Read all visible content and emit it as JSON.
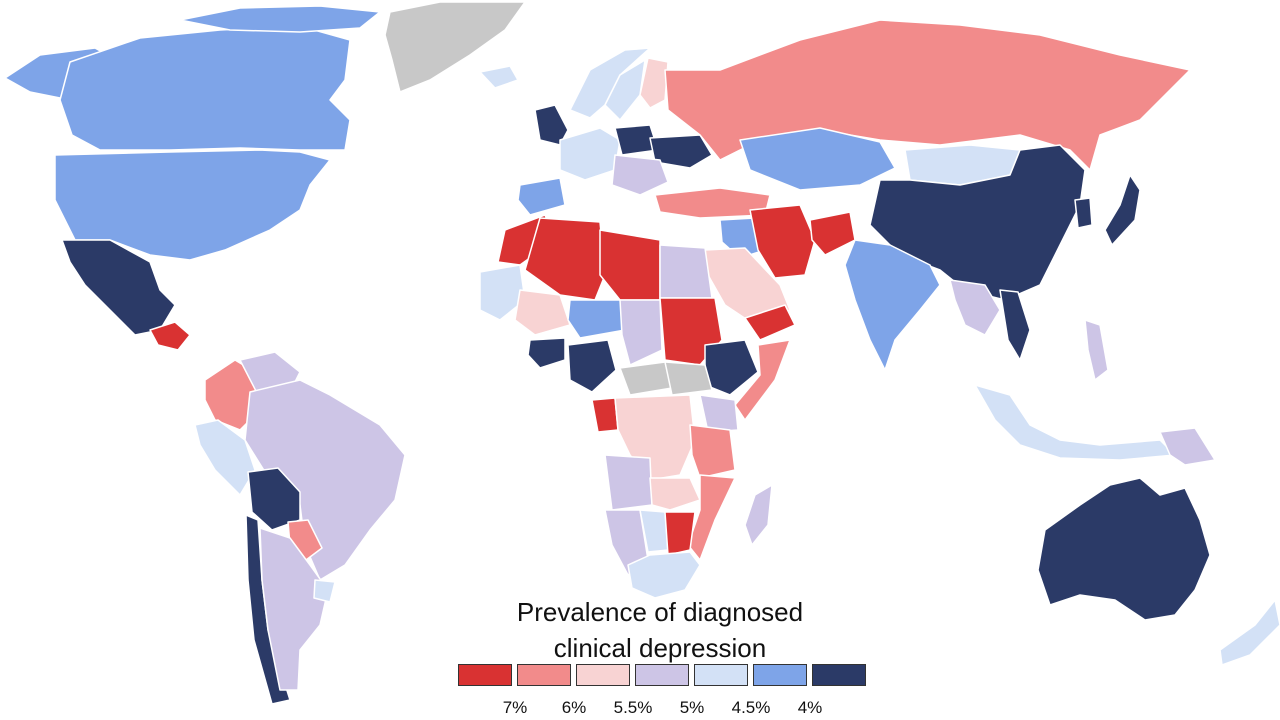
{
  "legend": {
    "title_line1": "Prevalence of diagnosed",
    "title_line2": "clinical depression",
    "bins": [
      {
        "color": "#d93232"
      },
      {
        "color": "#f28b8b"
      },
      {
        "color": "#f8d3d3"
      },
      {
        "color": "#cdc5e6"
      },
      {
        "color": "#d3e1f6"
      },
      {
        "color": "#7ea4e8"
      },
      {
        "color": "#2b3a67"
      }
    ],
    "ticks": [
      "7%",
      "6%",
      "5.5%",
      "5%",
      "4.5%",
      "4%"
    ]
  },
  "colors": {
    "ocean": "#ffffff",
    "no_data": "#c8c8c8",
    "border": "#ffffff"
  },
  "regions": [
    {
      "name": "Canada",
      "level": 5
    },
    {
      "name": "United States",
      "level": 5
    },
    {
      "name": "Alaska",
      "level": 5
    },
    {
      "name": "Greenland",
      "level": "none"
    },
    {
      "name": "Mexico",
      "level": 6
    },
    {
      "name": "Central America",
      "level": 0
    },
    {
      "name": "Colombia",
      "level": 1
    },
    {
      "name": "Venezuela",
      "level": 3
    },
    {
      "name": "Brazil",
      "level": 3
    },
    {
      "name": "Peru",
      "level": 4
    },
    {
      "name": "Bolivia",
      "level": 6
    },
    {
      "name": "Paraguay",
      "level": 1
    },
    {
      "name": "Chile",
      "level": 6
    },
    {
      "name": "Argentina",
      "level": 3
    },
    {
      "name": "Uruguay",
      "level": 4
    },
    {
      "name": "Iceland",
      "level": 4
    },
    {
      "name": "United Kingdom",
      "level": 6
    },
    {
      "name": "Norway",
      "level": 4
    },
    {
      "name": "Sweden",
      "level": 4
    },
    {
      "name": "Finland",
      "level": 2
    },
    {
      "name": "Western Europe",
      "level": 4
    },
    {
      "name": "Spain",
      "level": 5
    },
    {
      "name": "Poland",
      "level": 6
    },
    {
      "name": "Ukraine",
      "level": 6
    },
    {
      "name": "Central Europe",
      "level": 3
    },
    {
      "name": "Russia",
      "level": 1
    },
    {
      "name": "Kazakhstan",
      "level": 5
    },
    {
      "name": "Mongolia",
      "level": 4
    },
    {
      "name": "China",
      "level": 6
    },
    {
      "name": "Japan",
      "level": 6
    },
    {
      "name": "Korea",
      "level": 6
    },
    {
      "name": "Turkey",
      "level": 1
    },
    {
      "name": "Iran",
      "level": 0
    },
    {
      "name": "Afghanistan",
      "level": 0
    },
    {
      "name": "Iraq",
      "level": 5
    },
    {
      "name": "Saudi Arabia",
      "level": 2
    },
    {
      "name": "Yemen",
      "level": 0
    },
    {
      "name": "India",
      "level": 5
    },
    {
      "name": "Southeast Asia",
      "level": 3
    },
    {
      "name": "Vietnam",
      "level": 6
    },
    {
      "name": "Indonesia",
      "level": 4
    },
    {
      "name": "Philippines",
      "level": 3
    },
    {
      "name": "Papua New Guinea",
      "level": 3
    },
    {
      "name": "Australia",
      "level": 6
    },
    {
      "name": "New Zealand",
      "level": 4
    },
    {
      "name": "Morocco",
      "level": 0
    },
    {
      "name": "Algeria",
      "level": 0
    },
    {
      "name": "Libya",
      "level": 0
    },
    {
      "name": "Egypt",
      "level": 3
    },
    {
      "name": "Mauritania",
      "level": 4
    },
    {
      "name": "Mali",
      "level": 2
    },
    {
      "name": "Niger",
      "level": 5
    },
    {
      "name": "Chad",
      "level": 3
    },
    {
      "name": "Sudan",
      "level": 0
    },
    {
      "name": "West Africa",
      "level": 6
    },
    {
      "name": "Nigeria",
      "level": 6
    },
    {
      "name": "Ethiopia",
      "level": 6
    },
    {
      "name": "Somalia",
      "level": 1
    },
    {
      "name": "Central African Republic",
      "level": "none"
    },
    {
      "name": "South Sudan",
      "level": "none"
    },
    {
      "name": "DR Congo",
      "level": 2
    },
    {
      "name": "Gabon",
      "level": 0
    },
    {
      "name": "Kenya",
      "level": 3
    },
    {
      "name": "Tanzania",
      "level": 1
    },
    {
      "name": "Angola",
      "level": 3
    },
    {
      "name": "Zambia",
      "level": 2
    },
    {
      "name": "Mozambique",
      "level": 1
    },
    {
      "name": "Namibia",
      "level": 3
    },
    {
      "name": "Botswana",
      "level": 4
    },
    {
      "name": "Zimbabwe",
      "level": 0
    },
    {
      "name": "South Africa",
      "level": 4
    },
    {
      "name": "Madagascar",
      "level": 3
    }
  ]
}
